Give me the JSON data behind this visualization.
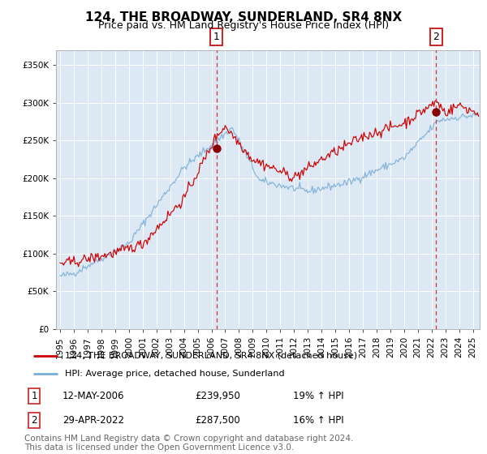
{
  "title": "124, THE BROADWAY, SUNDERLAND, SR4 8NX",
  "subtitle": "Price paid vs. HM Land Registry's House Price Index (HPI)",
  "legend_line1": "124, THE BROADWAY, SUNDERLAND, SR4 8NX (detached house)",
  "legend_line2": "HPI: Average price, detached house, Sunderland",
  "sale1_date": "12-MAY-2006",
  "sale1_price": "£239,950",
  "sale1_hpi": "19% ↑ HPI",
  "sale1_year": 2006.36,
  "sale1_value": 239950,
  "sale2_date": "29-APR-2022",
  "sale2_price": "£287,500",
  "sale2_hpi": "16% ↑ HPI",
  "sale2_year": 2022.33,
  "sale2_value": 287500,
  "background_color": "#dce9f5",
  "red_line_color": "#cc0000",
  "blue_line_color": "#7aadd4",
  "dot_color": "#880000",
  "dashed_line_color": "#cc3333",
  "grid_color": "#c8d8e8",
  "outer_bg": "#e8eef4",
  "ylim": [
    0,
    370000
  ],
  "xlim_start": 1994.7,
  "xlim_end": 2025.5,
  "footer": "Contains HM Land Registry data © Crown copyright and database right 2024.\nThis data is licensed under the Open Government Licence v3.0.",
  "footer_fontsize": 7.5,
  "title_fontsize": 11,
  "subtitle_fontsize": 9,
  "tick_fontsize": 7.5,
  "legend_fontsize": 8,
  "annotation_fontsize": 8.5
}
